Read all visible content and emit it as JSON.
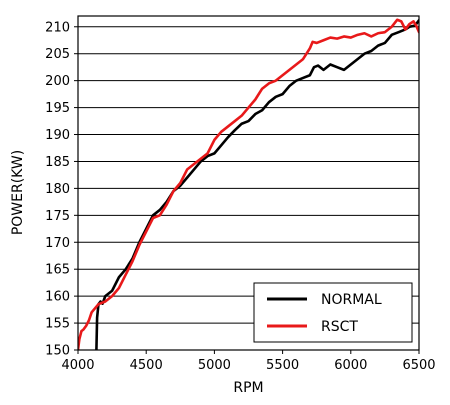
{
  "chart_data": {
    "type": "line",
    "title": "",
    "xlabel": "RPM",
    "ylabel": "POWER(KW)",
    "xlim": [
      4000,
      6500
    ],
    "ylim": [
      150,
      212
    ],
    "xticks": [
      4000,
      4500,
      5000,
      5500,
      6000,
      6500
    ],
    "yticks": [
      150,
      155,
      160,
      165,
      170,
      175,
      180,
      185,
      190,
      195,
      200,
      205,
      210
    ],
    "grid": "horizontal",
    "legend_position": "bottom-right",
    "series": [
      {
        "name": "NORMAL",
        "color": "#000000",
        "points": [
          [
            4135,
            150
          ],
          [
            4140,
            156
          ],
          [
            4150,
            158.5
          ],
          [
            4165,
            159
          ],
          [
            4180,
            158.6
          ],
          [
            4200,
            160
          ],
          [
            4250,
            161
          ],
          [
            4300,
            163.5
          ],
          [
            4350,
            165
          ],
          [
            4400,
            167
          ],
          [
            4450,
            170
          ],
          [
            4500,
            172.5
          ],
          [
            4550,
            175
          ],
          [
            4600,
            176
          ],
          [
            4650,
            177.5
          ],
          [
            4700,
            179.5
          ],
          [
            4750,
            180.5
          ],
          [
            4800,
            182
          ],
          [
            4850,
            183.5
          ],
          [
            4900,
            185
          ],
          [
            4950,
            186
          ],
          [
            5000,
            186.5
          ],
          [
            5050,
            188
          ],
          [
            5100,
            189.5
          ],
          [
            5150,
            190.8
          ],
          [
            5200,
            192
          ],
          [
            5250,
            192.5
          ],
          [
            5300,
            193.8
          ],
          [
            5350,
            194.5
          ],
          [
            5400,
            196
          ],
          [
            5450,
            197
          ],
          [
            5500,
            197.5
          ],
          [
            5550,
            199
          ],
          [
            5600,
            200
          ],
          [
            5650,
            200.5
          ],
          [
            5700,
            201
          ],
          [
            5730,
            202.5
          ],
          [
            5760,
            202.8
          ],
          [
            5800,
            202
          ],
          [
            5850,
            203
          ],
          [
            5900,
            202.5
          ],
          [
            5950,
            202
          ],
          [
            6000,
            203
          ],
          [
            6050,
            204
          ],
          [
            6100,
            205
          ],
          [
            6150,
            205.5
          ],
          [
            6200,
            206.5
          ],
          [
            6250,
            207
          ],
          [
            6300,
            208.5
          ],
          [
            6350,
            209
          ],
          [
            6400,
            209.5
          ],
          [
            6430,
            210
          ],
          [
            6470,
            210.2
          ],
          [
            6500,
            211.2
          ]
        ]
      },
      {
        "name": "RSCT",
        "color": "#e8191a",
        "points": [
          [
            4000,
            150
          ],
          [
            4010,
            152
          ],
          [
            4025,
            153.5
          ],
          [
            4040,
            153.8
          ],
          [
            4060,
            154.5
          ],
          [
            4080,
            155.5
          ],
          [
            4100,
            157
          ],
          [
            4150,
            158.5
          ],
          [
            4200,
            159
          ],
          [
            4250,
            160
          ],
          [
            4300,
            161.5
          ],
          [
            4350,
            164
          ],
          [
            4400,
            166.5
          ],
          [
            4450,
            169.5
          ],
          [
            4500,
            172
          ],
          [
            4550,
            174.5
          ],
          [
            4600,
            175
          ],
          [
            4650,
            177
          ],
          [
            4700,
            179.5
          ],
          [
            4750,
            181
          ],
          [
            4800,
            183.5
          ],
          [
            4850,
            184.5
          ],
          [
            4900,
            185.5
          ],
          [
            4950,
            186.5
          ],
          [
            5000,
            189
          ],
          [
            5050,
            190.5
          ],
          [
            5100,
            191.5
          ],
          [
            5150,
            192.5
          ],
          [
            5200,
            193.5
          ],
          [
            5250,
            195
          ],
          [
            5300,
            196.5
          ],
          [
            5350,
            198.5
          ],
          [
            5400,
            199.5
          ],
          [
            5450,
            200
          ],
          [
            5500,
            201
          ],
          [
            5550,
            202
          ],
          [
            5600,
            203
          ],
          [
            5650,
            204
          ],
          [
            5700,
            206
          ],
          [
            5720,
            207.2
          ],
          [
            5750,
            207
          ],
          [
            5800,
            207.5
          ],
          [
            5850,
            208
          ],
          [
            5900,
            207.8
          ],
          [
            5950,
            208.2
          ],
          [
            6000,
            208
          ],
          [
            6050,
            208.5
          ],
          [
            6100,
            208.8
          ],
          [
            6150,
            208.2
          ],
          [
            6200,
            208.8
          ],
          [
            6250,
            209
          ],
          [
            6300,
            210
          ],
          [
            6340,
            211.3
          ],
          [
            6370,
            211
          ],
          [
            6400,
            209.5
          ],
          [
            6430,
            210.5
          ],
          [
            6460,
            211
          ],
          [
            6480,
            210.2
          ],
          [
            6500,
            209
          ]
        ]
      }
    ]
  }
}
